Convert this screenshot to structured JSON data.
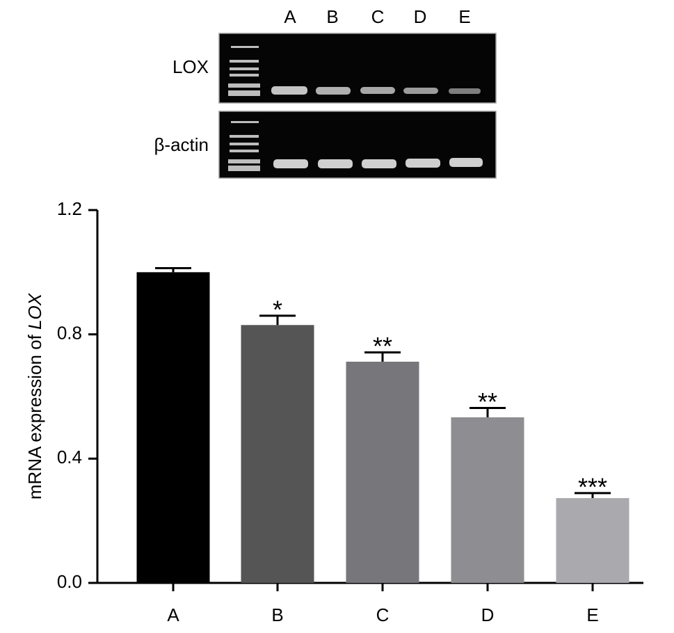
{
  "gel": {
    "lanes": [
      "A",
      "B",
      "C",
      "D",
      "E"
    ],
    "rows": [
      "LOX",
      "β-actin"
    ]
  },
  "chart_data": {
    "type": "bar",
    "ylabel": {
      "text": "mRNA expression of",
      "italic": "LOX"
    },
    "categories": [
      "A",
      "B",
      "C",
      "D",
      "E"
    ],
    "values": [
      1.0,
      0.83,
      0.712,
      0.533,
      0.273
    ],
    "errors": [
      0.013,
      0.03,
      0.03,
      0.03,
      0.016
    ],
    "annotations": [
      null,
      "*",
      "**",
      "**",
      "***"
    ],
    "colors": [
      "#000000",
      "#555555",
      "#77777b",
      "#8e8e92",
      "#a9a9ae"
    ],
    "ylim": [
      0,
      1.2
    ],
    "yticks": [
      {
        "value": 0,
        "label": "0.0"
      },
      0.4,
      0.8,
      1.2
    ]
  }
}
